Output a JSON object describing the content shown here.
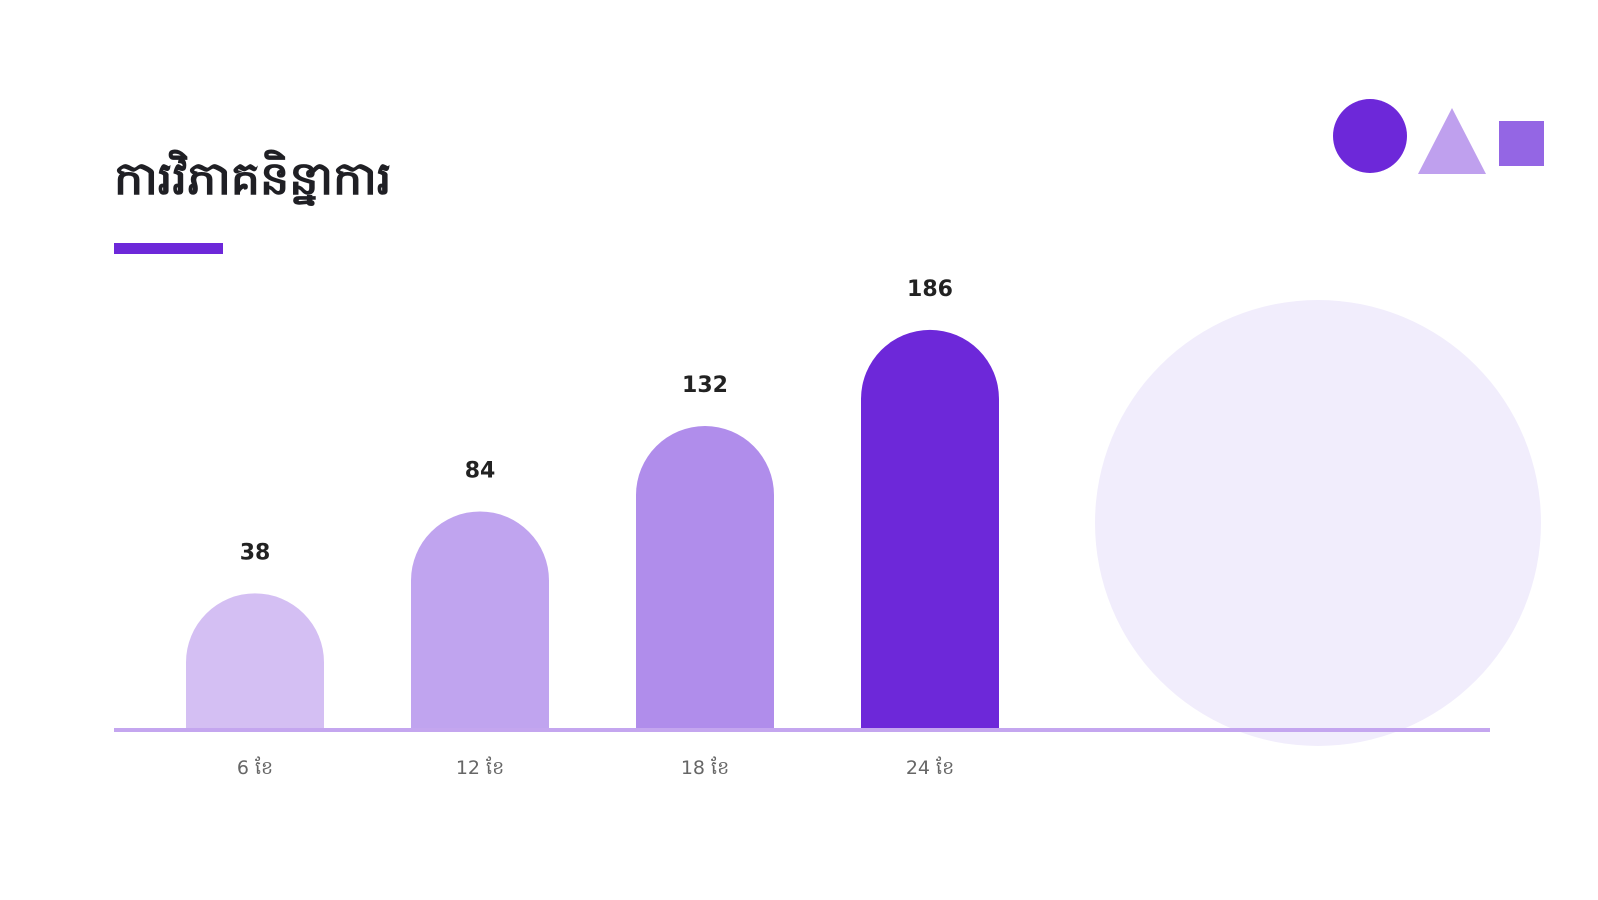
{
  "chart_data": {
    "type": "bar",
    "title": "ការវិភាគនិន្នាការ",
    "categories": [
      "6 ខែ",
      "12 ខែ",
      "18 ខែ",
      "24 ខែ"
    ],
    "values": [
      38,
      84,
      132,
      186
    ],
    "colors": [
      "#d4bff3",
      "#c0a4ef",
      "#b08deb",
      "#6d28d9"
    ]
  }
}
